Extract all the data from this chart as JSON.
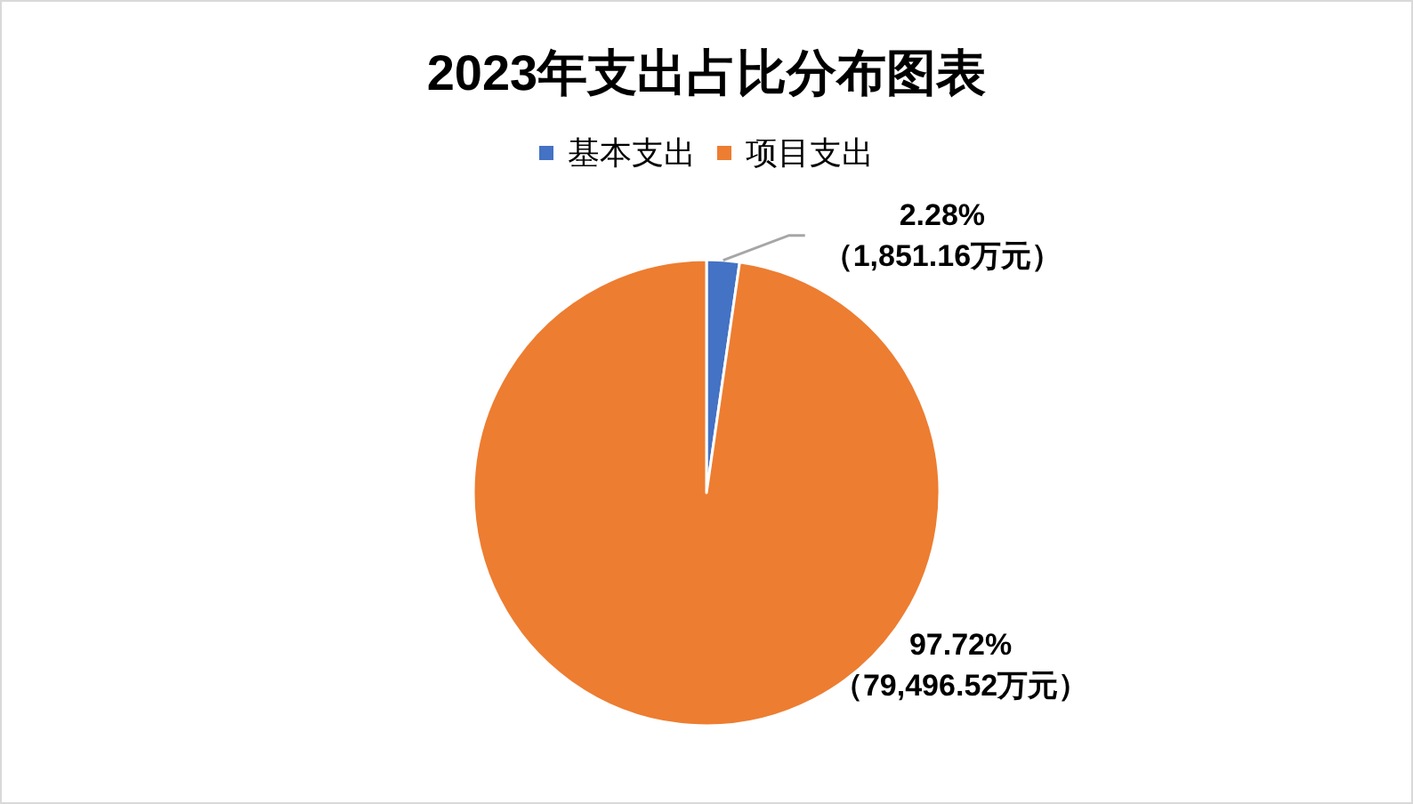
{
  "chart_data": {
    "type": "pie",
    "title": "2023年支出占比分布图表",
    "categories": [
      "基本支出",
      "项目支出"
    ],
    "values": [
      1851.16,
      79496.52
    ],
    "colors": [
      "#4472c4",
      "#ed7d31"
    ],
    "value_labels": [
      "2.28%\n（1,851.16万元）",
      "97.72%\n（79,496.52万元）"
    ],
    "legend": "top"
  }
}
